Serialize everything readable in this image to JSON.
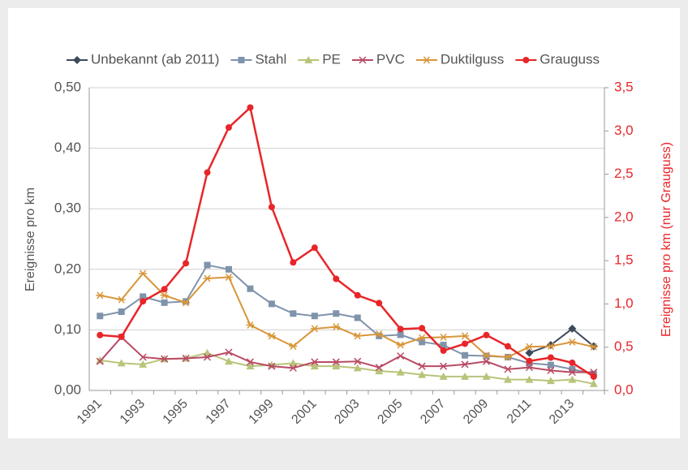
{
  "chart_data": {
    "type": "line",
    "categories": [
      "1991",
      null,
      "1993",
      null,
      "1995",
      null,
      "1997",
      null,
      "1999",
      null,
      "2001",
      null,
      "2003",
      null,
      "2005",
      null,
      "2007",
      null,
      "2009",
      null,
      "2011",
      null,
      "2013",
      null
    ],
    "y_label": "Ereignisse pro km",
    "y2_label": "Ereignisse pro km (nur Grauguss)",
    "y2_color": "#e8262a",
    "ylim": [
      0,
      0.5
    ],
    "yticks": [
      {
        "value": 0,
        "label": "0,00"
      },
      {
        "value": 0.1,
        "label": "0,10"
      },
      {
        "value": 0.2,
        "label": "0,20"
      },
      {
        "value": 0.3,
        "label": "0,30"
      },
      {
        "value": 0.4,
        "label": "0,40"
      },
      {
        "value": 0.5,
        "label": "0,50"
      }
    ],
    "y2lim": [
      0,
      3.5
    ],
    "y2ticks": [
      {
        "value": 0,
        "label": "0,0"
      },
      {
        "value": 0.5,
        "label": "0,5"
      },
      {
        "value": 1,
        "label": "1,0"
      },
      {
        "value": 1.5,
        "label": "1,5"
      },
      {
        "value": 2,
        "label": "2,0"
      },
      {
        "value": 2.5,
        "label": "2,5"
      },
      {
        "value": 3,
        "label": "3,0"
      },
      {
        "value": 3.5,
        "label": "3,5"
      }
    ],
    "grid": true,
    "legend": "top",
    "series": [
      {
        "name": "Unbekannt (ab 2011)",
        "color": "#3d4a5c",
        "marker": "diamond",
        "values": [
          null,
          null,
          null,
          null,
          null,
          null,
          null,
          null,
          null,
          null,
          null,
          null,
          null,
          null,
          null,
          null,
          null,
          null,
          null,
          null,
          0.062,
          0.075,
          0.102,
          0.073
        ]
      },
      {
        "name": "Stahl",
        "color": "#7f93ab",
        "marker": "square",
        "values": [
          0.123,
          0.13,
          0.155,
          0.145,
          0.147,
          0.207,
          0.2,
          0.168,
          0.143,
          0.127,
          0.123,
          0.127,
          0.12,
          0.09,
          0.092,
          0.08,
          0.075,
          0.058,
          0.057,
          0.055,
          0.045,
          0.042,
          0.035,
          0.027
        ]
      },
      {
        "name": "PE",
        "color": "#b8c47a",
        "marker": "triangle",
        "values": [
          0.05,
          0.045,
          0.043,
          0.052,
          0.053,
          0.062,
          0.048,
          0.04,
          0.042,
          0.045,
          0.04,
          0.04,
          0.037,
          0.032,
          0.03,
          0.026,
          0.023,
          0.023,
          0.023,
          0.018,
          0.018,
          0.016,
          0.018,
          0.011
        ]
      },
      {
        "name": "PVC",
        "color": "#b94a64",
        "marker": "x",
        "values": [
          0.048,
          0.088,
          0.055,
          0.052,
          0.053,
          0.055,
          0.063,
          0.047,
          0.04,
          0.037,
          0.047,
          0.047,
          0.048,
          0.038,
          0.057,
          0.04,
          0.04,
          0.043,
          0.048,
          0.035,
          0.038,
          0.033,
          0.03,
          0.03
        ]
      },
      {
        "name": "Duktilguss",
        "color": "#d8963a",
        "marker": "star",
        "values": [
          0.157,
          0.15,
          0.193,
          0.157,
          0.145,
          0.185,
          0.187,
          0.108,
          0.09,
          0.073,
          0.102,
          0.105,
          0.09,
          0.093,
          0.075,
          0.087,
          0.088,
          0.09,
          0.058,
          0.055,
          0.072,
          0.073,
          0.08,
          0.072
        ]
      },
      {
        "name": "Grauguss",
        "color": "#e8262a",
        "marker": "circle",
        "axis": "y2",
        "values": [
          0.64,
          0.62,
          1.03,
          1.17,
          1.47,
          2.52,
          3.04,
          3.27,
          2.12,
          1.48,
          1.65,
          1.29,
          1.1,
          1.01,
          0.71,
          0.72,
          0.46,
          0.54,
          0.64,
          0.51,
          0.34,
          0.38,
          0.32,
          0.16
        ]
      }
    ]
  }
}
